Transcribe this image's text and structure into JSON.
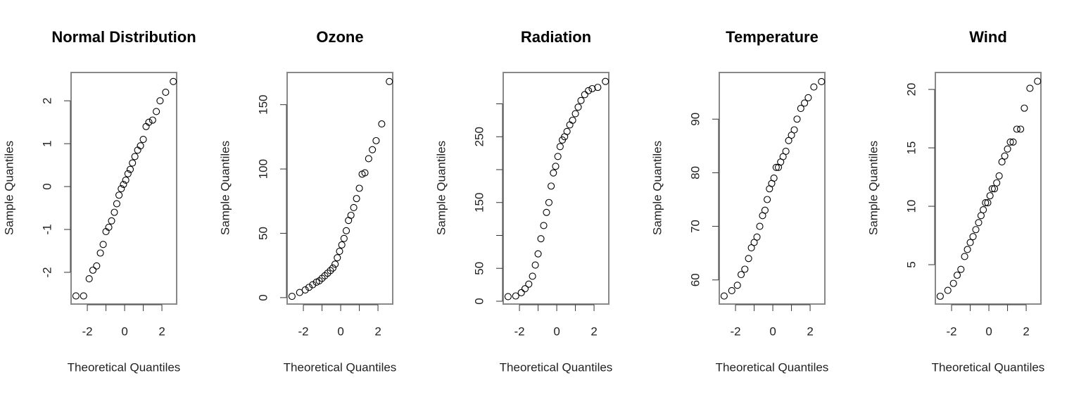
{
  "chart_data": [
    {
      "type": "scatter",
      "title": "Normal Distribution",
      "xlabel": "Theoretical Quantiles",
      "ylabel": "Sample Quantiles",
      "x": [
        -2.61,
        -2.2,
        -1.9,
        -1.7,
        -1.5,
        -1.3,
        -1.15,
        -1.0,
        -0.85,
        -0.7,
        -0.55,
        -0.42,
        -0.3,
        -0.18,
        -0.06,
        0.06,
        0.18,
        0.3,
        0.42,
        0.55,
        0.7,
        0.85,
        1.0,
        1.15,
        1.3,
        1.5,
        1.7,
        1.9,
        2.2,
        2.61
      ],
      "values": [
        -2.55,
        -2.55,
        -2.15,
        -1.95,
        -1.85,
        -1.55,
        -1.35,
        -1.05,
        -0.95,
        -0.8,
        -0.6,
        -0.4,
        -0.2,
        -0.05,
        0.05,
        0.15,
        0.3,
        0.4,
        0.55,
        0.7,
        0.85,
        0.95,
        1.1,
        1.4,
        1.5,
        1.55,
        1.75,
        2.0,
        2.2,
        2.45
      ],
      "xlim": [
        -2.87,
        2.79
      ],
      "xticks": [
        -2,
        0,
        2
      ],
      "xticks_unlabeled": [
        -1,
        1
      ],
      "ylim": [
        -2.74,
        2.66
      ],
      "yticks": [
        -2,
        -1,
        0,
        1,
        2
      ],
      "color": "#000000"
    },
    {
      "type": "scatter",
      "title": "Ozone",
      "xlabel": "Theoretical Quantiles",
      "ylabel": "Sample Quantiles",
      "x": [
        -2.61,
        -2.2,
        -1.9,
        -1.7,
        -1.5,
        -1.3,
        -1.15,
        -1.0,
        -0.85,
        -0.7,
        -0.55,
        -0.42,
        -0.3,
        -0.18,
        -0.06,
        0.06,
        0.18,
        0.3,
        0.42,
        0.55,
        0.7,
        0.85,
        1.0,
        1.15,
        1.3,
        1.5,
        1.7,
        1.9,
        2.2,
        2.61
      ],
      "values": [
        1,
        4,
        6,
        8,
        10,
        12,
        13,
        15,
        17,
        19,
        21,
        23,
        26,
        31,
        36,
        41,
        46,
        52,
        60,
        64,
        70,
        77,
        85,
        96,
        97,
        108,
        115,
        122,
        135,
        168
      ],
      "xlim": [
        -2.87,
        2.79
      ],
      "xticks": [
        -2,
        0,
        2
      ],
      "xticks_unlabeled": [
        -1,
        1
      ],
      "ylim": [
        -5,
        175
      ],
      "yticks": [
        0,
        50,
        100,
        150
      ],
      "color": "#000000"
    },
    {
      "type": "scatter",
      "title": "Radiation",
      "xlabel": "Theoretical Quantiles",
      "ylabel": "Sample Quantiles",
      "x": [
        -2.61,
        -2.2,
        -1.9,
        -1.7,
        -1.5,
        -1.3,
        -1.15,
        -1.0,
        -0.85,
        -0.7,
        -0.55,
        -0.42,
        -0.3,
        -0.18,
        -0.06,
        0.06,
        0.18,
        0.3,
        0.42,
        0.55,
        0.7,
        0.85,
        1.0,
        1.15,
        1.3,
        1.5,
        1.7,
        1.9,
        2.2,
        2.61
      ],
      "values": [
        7,
        8,
        13,
        19,
        26,
        38,
        55,
        72,
        95,
        115,
        135,
        150,
        175,
        195,
        205,
        220,
        235,
        245,
        250,
        258,
        268,
        275,
        285,
        295,
        305,
        314,
        320,
        323,
        325,
        334
      ],
      "xlim": [
        -2.87,
        2.79
      ],
      "xticks": [
        -2,
        0,
        2
      ],
      "xticks_unlabeled": [
        -1,
        1
      ],
      "ylim": [
        -4.3,
        347.6
      ],
      "yticks": [
        0,
        50,
        150,
        250
      ],
      "yticks_unlabeled": [
        100,
        200,
        300
      ],
      "color": "#000000"
    },
    {
      "type": "scatter",
      "title": "Temperature",
      "xlabel": "Theoretical Quantiles",
      "ylabel": "Sample Quantiles",
      "x": [
        -2.61,
        -2.2,
        -1.9,
        -1.7,
        -1.5,
        -1.3,
        -1.15,
        -1.0,
        -0.85,
        -0.7,
        -0.55,
        -0.42,
        -0.3,
        -0.18,
        -0.06,
        0.06,
        0.18,
        0.3,
        0.42,
        0.55,
        0.7,
        0.85,
        1.0,
        1.15,
        1.3,
        1.5,
        1.7,
        1.9,
        2.2,
        2.61
      ],
      "values": [
        57,
        58,
        59,
        61,
        62,
        64,
        66,
        67,
        68,
        70,
        72,
        73,
        75,
        77,
        78,
        79,
        81,
        81,
        82,
        83,
        84,
        86,
        87,
        88,
        90,
        92,
        93,
        94,
        96,
        97
      ],
      "xlim": [
        -2.87,
        2.79
      ],
      "xticks": [
        -2,
        0,
        2
      ],
      "xticks_unlabeled": [
        -1,
        1
      ],
      "ylim": [
        55.5,
        98.7
      ],
      "yticks": [
        60,
        70,
        80,
        90
      ],
      "color": "#000000"
    },
    {
      "type": "scatter",
      "title": "Wind",
      "xlabel": "Theoretical Quantiles",
      "ylabel": "Sample Quantiles",
      "x": [
        -2.61,
        -2.2,
        -1.9,
        -1.7,
        -1.5,
        -1.3,
        -1.15,
        -1.0,
        -0.85,
        -0.7,
        -0.55,
        -0.42,
        -0.3,
        -0.18,
        -0.06,
        0.06,
        0.18,
        0.3,
        0.42,
        0.55,
        0.7,
        0.85,
        1.0,
        1.15,
        1.3,
        1.5,
        1.7,
        1.9,
        2.2,
        2.61
      ],
      "values": [
        2.3,
        2.8,
        3.4,
        4.1,
        4.6,
        5.7,
        6.3,
        6.9,
        7.4,
        8.0,
        8.6,
        9.2,
        9.7,
        10.3,
        10.3,
        10.9,
        11.5,
        11.5,
        12.0,
        12.6,
        13.8,
        14.3,
        14.9,
        15.5,
        15.5,
        16.6,
        16.6,
        18.4,
        20.1,
        20.7
      ],
      "xlim": [
        -2.87,
        2.79
      ],
      "xticks": [
        -2,
        0,
        2
      ],
      "xticks_unlabeled": [
        -1,
        1
      ],
      "ylim": [
        1.63,
        21.45
      ],
      "yticks": [
        5,
        10,
        15,
        20
      ],
      "color": "#000000"
    }
  ]
}
